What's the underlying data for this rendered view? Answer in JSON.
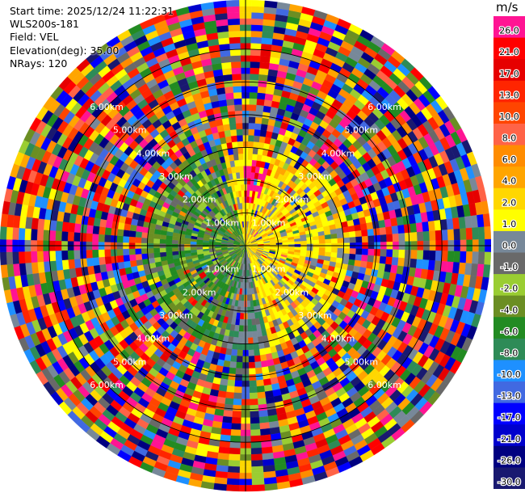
{
  "header": {
    "start_time": "Start time: 2025/12/24 11:22:31",
    "instrument": "WLS200s-181",
    "field": "Field: VEL",
    "elevation": "Elevation(deg): 35.00",
    "nrays": "NRays: 120"
  },
  "chart_data": {
    "type": "heatmap",
    "projection": "polar-ppi",
    "field": "VEL",
    "units": "m/s",
    "elevation_deg": 35.0,
    "n_rays": 120,
    "max_range_km": 7.5,
    "range_rings_km": [
      1.0,
      2.0,
      3.0,
      4.0,
      5.0,
      6.0
    ],
    "ring_labels": [
      "1.00km",
      "2.00km",
      "3.00km",
      "4.00km",
      "5.00km",
      "6.00km"
    ],
    "ring_label_directions": [
      "northwest",
      "northeast",
      "southwest",
      "southeast"
    ],
    "colorbar": {
      "title": "m/s",
      "tick_labels": [
        "26.0",
        "21.0",
        "17.0",
        "13.0",
        "10.0",
        "8.0",
        "6.0",
        "4.0",
        "2.0",
        "1.0",
        "0.0",
        "-1.0",
        "-2.0",
        "-4.0",
        "-6.0",
        "-8.0",
        "-10.0",
        "-13.0",
        "-17.0",
        "-21.0",
        "-26.0",
        "-30.0"
      ],
      "colors": [
        "#ff1493",
        "#ff0000",
        "#e60000",
        "#ff2500",
        "#ff4500",
        "#ff6347",
        "#ff8c00",
        "#ffa500",
        "#ffd700",
        "#ffff00",
        "#778899",
        "#696969",
        "#9acd32",
        "#6b8e23",
        "#228b22",
        "#2e8b57",
        "#1e90ff",
        "#4169e1",
        "#0000ff",
        "#0000cd",
        "#000080",
        "#191970"
      ]
    },
    "regions": [
      {
        "area": "west, within ~2 km",
        "velocity_range": "-1.0 to -6.0",
        "colors": "greens"
      },
      {
        "area": "east, within ~3 km",
        "velocity_range": "1.0 to 4.0",
        "colors": "yellows"
      },
      {
        "area": "north, near ~1.5-2.5 km",
        "velocity_range": "26.0",
        "colors": "magenta"
      },
      {
        "area": "beyond ~3 km",
        "velocity_range": "noise, -30.0 to 26.0",
        "colors": "mixed"
      }
    ]
  }
}
